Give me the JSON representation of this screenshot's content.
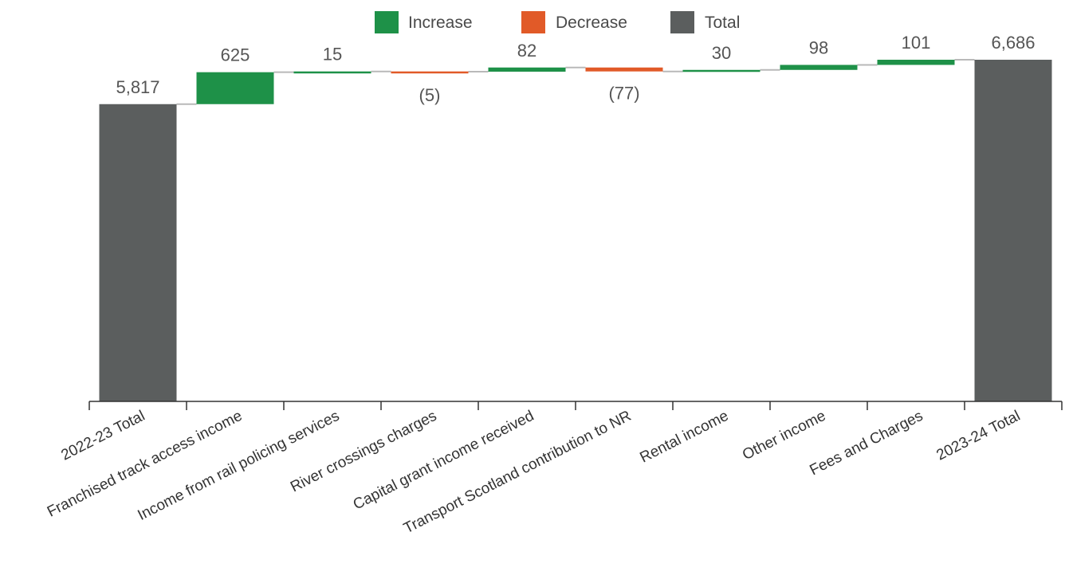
{
  "legend": {
    "increase_label": "Increase",
    "decrease_label": "Decrease",
    "total_label": "Total"
  },
  "colors": {
    "increase": "#1e9148",
    "decrease": "#e15a28",
    "total": "#5b5e5e",
    "connector": "#b9b9b9",
    "axis": "#333333"
  },
  "chart_data": {
    "type": "bar",
    "subtype": "waterfall",
    "title": "",
    "xlabel": "",
    "ylabel": "",
    "ylim": [
      0,
      7000
    ],
    "categories": [
      "2022-23 Total",
      "Franchised track access income",
      "Income from rail policing services",
      "River crossings charges",
      "Capital grant income received",
      "Transport Scotland contribution to NR",
      "Rental income",
      "Other income",
      "Fees and Charges",
      "2023-24 Total"
    ],
    "kinds": [
      "total",
      "increase",
      "increase",
      "decrease",
      "increase",
      "decrease",
      "increase",
      "increase",
      "increase",
      "total"
    ],
    "values": [
      5817,
      625,
      15,
      -5,
      82,
      -77,
      30,
      98,
      101,
      6686
    ],
    "labels": [
      "5,817",
      "625",
      "15",
      "(5)",
      "82",
      "(77)",
      "30",
      "98",
      "101",
      "6,686"
    ],
    "legend_position": "top-center"
  }
}
